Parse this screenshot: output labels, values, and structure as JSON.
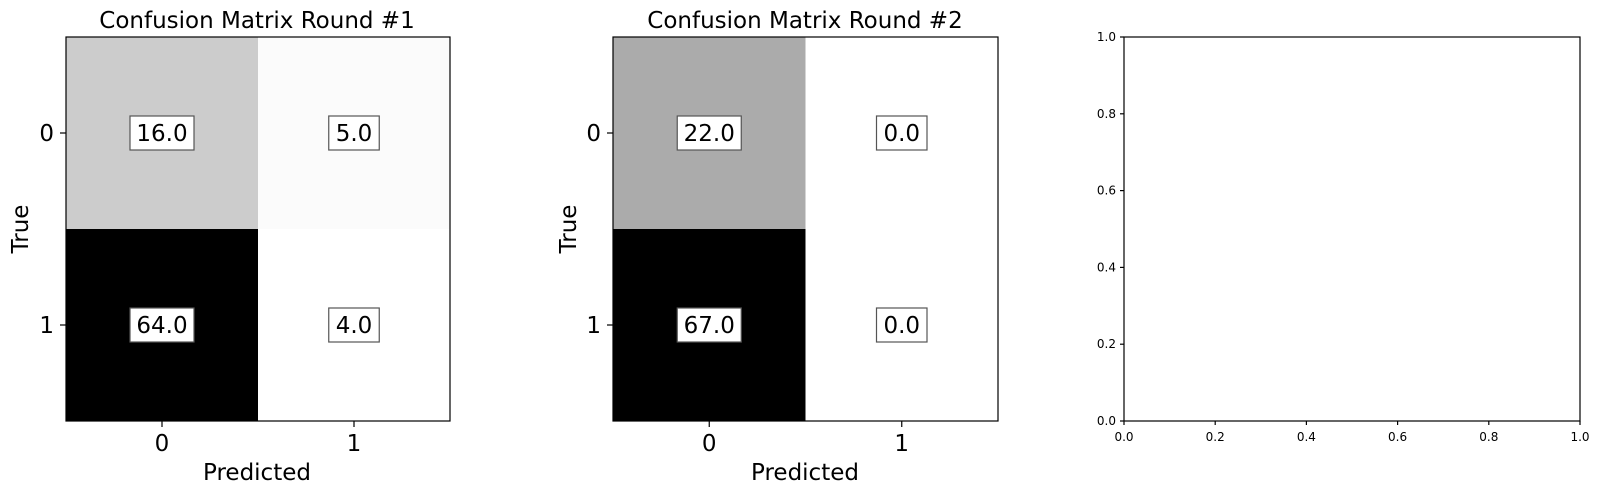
{
  "chart_data": [
    {
      "type": "heatmap",
      "title": "Confusion Matrix Round #1",
      "xlabel": "Predicted",
      "ylabel": "True",
      "x_categories": [
        "0",
        "1"
      ],
      "y_categories": [
        "0",
        "1"
      ],
      "values": [
        [
          16.0,
          5.0
        ],
        [
          64.0,
          4.0
        ]
      ],
      "value_labels": [
        [
          "16.0",
          "5.0"
        ],
        [
          "64.0",
          "4.0"
        ]
      ],
      "colormap": "greys"
    },
    {
      "type": "heatmap",
      "title": "Confusion Matrix Round #2",
      "xlabel": "Predicted",
      "ylabel": "True",
      "x_categories": [
        "0",
        "1"
      ],
      "y_categories": [
        "0",
        "1"
      ],
      "values": [
        [
          22.0,
          0.0
        ],
        [
          67.0,
          0.0
        ]
      ],
      "value_labels": [
        [
          "22.0",
          "0.0"
        ],
        [
          "67.0",
          "0.0"
        ]
      ],
      "colormap": "greys"
    },
    {
      "type": "line",
      "title": "",
      "xlabel": "",
      "ylabel": "",
      "xlim": [
        0,
        1
      ],
      "ylim": [
        0,
        1
      ],
      "xticks": [
        "0.0",
        "0.2",
        "0.4",
        "0.6",
        "0.8",
        "1.0"
      ],
      "yticks": [
        "0.0",
        "0.2",
        "0.4",
        "0.6",
        "0.8",
        "1.0"
      ],
      "series": []
    }
  ]
}
